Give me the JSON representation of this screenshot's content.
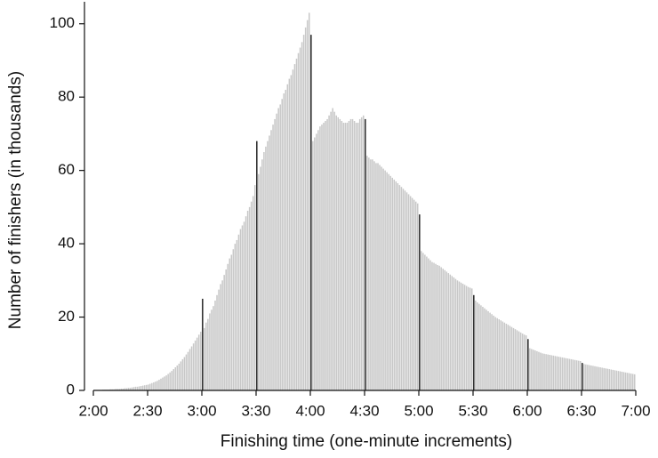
{
  "chart_data": {
    "type": "histogram",
    "xlabel": "Finishing time (one-minute increments)",
    "ylabel": "Number of finishers (in thousands)",
    "color": "#c8c8c8",
    "highlight_color": "#333333",
    "highlight_at": [
      180,
      210,
      240,
      270,
      300,
      330,
      360,
      390
    ],
    "bins": [
      120,
      121,
      122,
      123,
      124,
      125,
      126,
      127,
      128,
      129,
      130,
      131,
      132,
      133,
      134,
      135,
      136,
      137,
      138,
      139,
      140,
      141,
      142,
      143,
      144,
      145,
      146,
      147,
      148,
      149,
      150,
      151,
      152,
      153,
      154,
      155,
      156,
      157,
      158,
      159,
      160,
      161,
      162,
      163,
      164,
      165,
      166,
      167,
      168,
      169,
      170,
      171,
      172,
      173,
      174,
      175,
      176,
      177,
      178,
      179,
      180,
      181,
      182,
      183,
      184,
      185,
      186,
      187,
      188,
      189,
      190,
      191,
      192,
      193,
      194,
      195,
      196,
      197,
      198,
      199,
      200,
      201,
      202,
      203,
      204,
      205,
      206,
      207,
      208,
      209,
      210,
      211,
      212,
      213,
      214,
      215,
      216,
      217,
      218,
      219,
      220,
      221,
      222,
      223,
      224,
      225,
      226,
      227,
      228,
      229,
      230,
      231,
      232,
      233,
      234,
      235,
      236,
      237,
      238,
      239,
      240,
      241,
      242,
      243,
      244,
      245,
      246,
      247,
      248,
      249,
      250,
      251,
      252,
      253,
      254,
      255,
      256,
      257,
      258,
      259,
      260,
      261,
      262,
      263,
      264,
      265,
      266,
      267,
      268,
      269,
      270,
      271,
      272,
      273,
      274,
      275,
      276,
      277,
      278,
      279,
      280,
      281,
      282,
      283,
      284,
      285,
      286,
      287,
      288,
      289,
      290,
      291,
      292,
      293,
      294,
      295,
      296,
      297,
      298,
      299,
      300,
      301,
      302,
      303,
      304,
      305,
      306,
      307,
      308,
      309,
      310,
      311,
      312,
      313,
      314,
      315,
      316,
      317,
      318,
      319,
      320,
      321,
      322,
      323,
      324,
      325,
      326,
      327,
      328,
      329,
      330,
      331,
      332,
      333,
      334,
      335,
      336,
      337,
      338,
      339,
      340,
      341,
      342,
      343,
      344,
      345,
      346,
      347,
      348,
      349,
      350,
      351,
      352,
      353,
      354,
      355,
      356,
      357,
      358,
      359,
      360,
      361,
      362,
      363,
      364,
      365,
      366,
      367,
      368,
      369,
      370,
      371,
      372,
      373,
      374,
      375,
      376,
      377,
      378,
      379,
      380,
      381,
      382,
      383,
      384,
      385,
      386,
      387,
      388,
      389,
      390,
      391,
      392,
      393,
      394,
      395,
      396,
      397,
      398,
      399,
      400,
      401,
      402,
      403,
      404,
      405,
      406,
      407,
      408,
      409,
      410,
      411,
      412,
      413,
      414,
      415,
      416,
      417,
      418,
      419,
      420
    ],
    "values": [
      0.1,
      0.1,
      0.1,
      0.1,
      0.1,
      0.2,
      0.2,
      0.2,
      0.2,
      0.3,
      0.3,
      0.3,
      0.4,
      0.4,
      0.4,
      0.5,
      0.5,
      0.6,
      0.6,
      0.7,
      0.7,
      0.8,
      0.9,
      1,
      1,
      1.1,
      1.2,
      1.3,
      1.4,
      1.5,
      1.6,
      1.8,
      2,
      2.2,
      2.4,
      2.6,
      2.9,
      3.2,
      3.5,
      3.8,
      4.1,
      4.5,
      4.9,
      5.3,
      5.8,
      6.3,
      6.8,
      7.3,
      7.9,
      8.5,
      9.1,
      9.8,
      10.5,
      11.3,
      12,
      12.8,
      13.6,
      14.4,
      15.2,
      16,
      25,
      17,
      18.5,
      19.5,
      21,
      22,
      23,
      24.5,
      26,
      27.5,
      29,
      30,
      31.5,
      33,
      34.5,
      36,
      37,
      38.5,
      40,
      41,
      42.5,
      44,
      45,
      46,
      47.5,
      49,
      50,
      51.5,
      53,
      56,
      68,
      59,
      61,
      63,
      65,
      66.5,
      68,
      69.5,
      71,
      72.5,
      74,
      75.5,
      77,
      78,
      79.5,
      81,
      82,
      83.5,
      85,
      86,
      87.5,
      89,
      90.5,
      92,
      93.5,
      95,
      97,
      99,
      101,
      103,
      97,
      68,
      69,
      70,
      71,
      72,
      72.5,
      73,
      73.5,
      74,
      75,
      76,
      77,
      76,
      75,
      74.5,
      74,
      73.5,
      73,
      73,
      73,
      73.5,
      74,
      74,
      73.5,
      73,
      73,
      74,
      74.5,
      75,
      74,
      64,
      63.5,
      63,
      63,
      62.5,
      62,
      62,
      61.5,
      61,
      60.5,
      60,
      59.5,
      59,
      58.5,
      58,
      57.5,
      57,
      56.5,
      56,
      55.5,
      55,
      54.5,
      54,
      53.5,
      53,
      52.5,
      52,
      51.5,
      51,
      48,
      38,
      37.5,
      37,
      36.5,
      36,
      35.5,
      35,
      34.8,
      34.5,
      34.2,
      34,
      33.6,
      33.2,
      32.8,
      32.4,
      32,
      31.6,
      31.2,
      30.8,
      30.4,
      30,
      29.7,
      29.4,
      29.1,
      28.8,
      28.5,
      28.2,
      28,
      27.8,
      26,
      24.5,
      24,
      23.6,
      23.2,
      22.8,
      22.4,
      22,
      21.6,
      21.2,
      20.8,
      20.4,
      20,
      19.7,
      19.4,
      19.1,
      18.8,
      18.5,
      18.2,
      17.9,
      17.6,
      17.3,
      17,
      16.7,
      16.4,
      16.1,
      15.8,
      15.5,
      15.2,
      15,
      14,
      11.5,
      11.3,
      11.1,
      10.9,
      10.7,
      10.5,
      10.3,
      10.1,
      10,
      9.9,
      9.8,
      9.7,
      9.6,
      9.5,
      9.4,
      9.3,
      9.2,
      9.1,
      9,
      8.9,
      8.8,
      8.7,
      8.6,
      8.5,
      8.4,
      8.3,
      8.2,
      8.1,
      8,
      7.5,
      7.2,
      7.1,
      7,
      6.9,
      6.8,
      6.7,
      6.6,
      6.5,
      6.4,
      6.3,
      6.2,
      6.1,
      6,
      5.9,
      5.8,
      5.7,
      5.6,
      5.5,
      5.4,
      5.3,
      5.2,
      5.1,
      5,
      4.9,
      4.8,
      4.7,
      4.6,
      4.5,
      4.4
    ],
    "xlim": [
      120,
      420
    ],
    "xticks": [
      {
        "value": 120,
        "label": "2:00"
      },
      {
        "value": 150,
        "label": "2:30"
      },
      {
        "value": 180,
        "label": "3:00"
      },
      {
        "value": 210,
        "label": "3:30"
      },
      {
        "value": 240,
        "label": "4:00"
      },
      {
        "value": 270,
        "label": "4:30"
      },
      {
        "value": 300,
        "label": "5:00"
      },
      {
        "value": 330,
        "label": "5:30"
      },
      {
        "value": 360,
        "label": "6:00"
      },
      {
        "value": 390,
        "label": "6:30"
      },
      {
        "value": 420,
        "label": "7:00"
      }
    ],
    "ylim": [
      0,
      106
    ],
    "yticks": [
      0,
      20,
      40,
      60,
      80,
      100
    ]
  }
}
